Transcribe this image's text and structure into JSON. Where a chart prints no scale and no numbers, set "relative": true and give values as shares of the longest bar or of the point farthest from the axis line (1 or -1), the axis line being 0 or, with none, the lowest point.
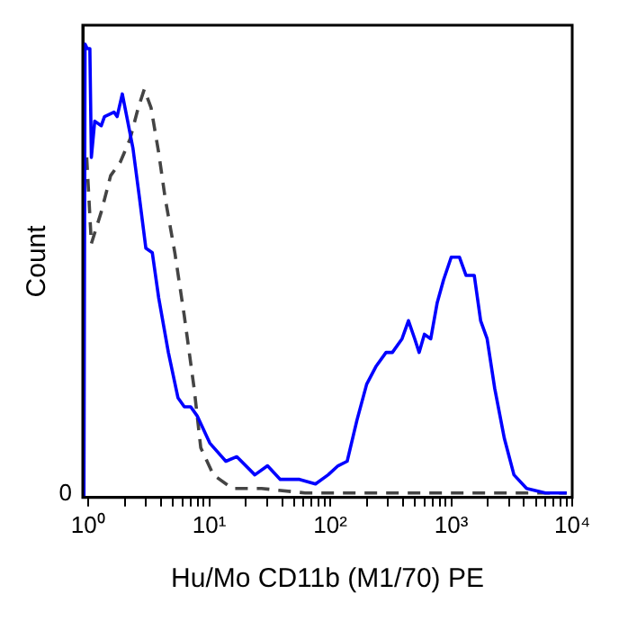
{
  "chart_data": {
    "type": "line",
    "xlabel": "Hu/Mo CD11b (M1/70) PE",
    "ylabel": "Count",
    "relative": true,
    "log": "x",
    "grid": false,
    "legend": false,
    "marker": "none",
    "annotations": [
      "0"
    ],
    "xlim": [
      0.9,
      10000
    ],
    "xticks": [
      {
        "value": 1,
        "label": "10⁰"
      },
      {
        "value": 2,
        "label": null
      },
      {
        "value": 3,
        "label": null
      },
      {
        "value": 4,
        "label": null
      },
      {
        "value": 5,
        "label": null
      },
      {
        "value": 6,
        "label": null
      },
      {
        "value": 7,
        "label": null
      },
      {
        "value": 8,
        "label": null
      },
      {
        "value": 9,
        "label": null
      },
      {
        "value": 10,
        "label": "10¹"
      },
      {
        "value": 20,
        "label": null
      },
      {
        "value": 30,
        "label": null
      },
      {
        "value": 40,
        "label": null
      },
      {
        "value": 50,
        "label": null
      },
      {
        "value": 60,
        "label": null
      },
      {
        "value": 70,
        "label": null
      },
      {
        "value": 80,
        "label": null
      },
      {
        "value": 90,
        "label": null
      },
      {
        "value": 100,
        "label": "10²"
      },
      {
        "value": 200,
        "label": null
      },
      {
        "value": 300,
        "label": null
      },
      {
        "value": 400,
        "label": null
      },
      {
        "value": 500,
        "label": null
      },
      {
        "value": 600,
        "label": null
      },
      {
        "value": 700,
        "label": null
      },
      {
        "value": 800,
        "label": null
      },
      {
        "value": 900,
        "label": null
      },
      {
        "value": 1000,
        "label": "10³"
      },
      {
        "value": 2000,
        "label": null
      },
      {
        "value": 3000,
        "label": null
      },
      {
        "value": 4000,
        "label": null
      },
      {
        "value": 5000,
        "label": null
      },
      {
        "value": 6000,
        "label": null
      },
      {
        "value": 7000,
        "label": null
      },
      {
        "value": 8000,
        "label": null
      },
      {
        "value": 9000,
        "label": null
      },
      {
        "value": 10000,
        "label": "10⁴"
      }
    ],
    "series": [
      {
        "color": "#0000ff",
        "line_style": "solid",
        "x": [
          0.92,
          0.94,
          0.98,
          1.03,
          1.06,
          1.13,
          1.28,
          1.36,
          1.63,
          1.73,
          1.91,
          2.08,
          2.34,
          2.65,
          2.99,
          3.38,
          3.82,
          4.59,
          5.51,
          6.22,
          7.02,
          7.94,
          10.1,
          13.7,
          16.9,
          23.8,
          30.3,
          38.6,
          55.7,
          75.5,
          96,
          116,
          138,
          166,
          200,
          240,
          289,
          326,
          392,
          443,
          499,
          543,
          600,
          677,
          766,
          864,
          1000,
          1170,
          1324,
          1550,
          1750,
          1980,
          2290,
          2750,
          3300,
          4200,
          6000,
          9000
        ],
        "values": [
          0,
          1.0,
          0.99,
          0.99,
          0.75,
          0.83,
          0.82,
          0.84,
          0.85,
          0.84,
          0.89,
          0.84,
          0.77,
          0.66,
          0.55,
          0.54,
          0.44,
          0.32,
          0.22,
          0.2,
          0.2,
          0.18,
          0.12,
          0.08,
          0.09,
          0.05,
          0.07,
          0.04,
          0.04,
          0.03,
          0.05,
          0.07,
          0.08,
          0.17,
          0.25,
          0.29,
          0.32,
          0.32,
          0.35,
          0.39,
          0.35,
          0.32,
          0.36,
          0.35,
          0.43,
          0.48,
          0.53,
          0.53,
          0.49,
          0.49,
          0.39,
          0.35,
          0.24,
          0.13,
          0.05,
          0.02,
          0.01,
          0.01
        ]
      },
      {
        "color": "#444444",
        "line_style": "dashed",
        "x": [
          0.97,
          1.06,
          1.28,
          1.53,
          1.84,
          2.21,
          2.59,
          2.9,
          3.3,
          3.82,
          4.32,
          5.19,
          6.22,
          7.5,
          8.5,
          10.8,
          15.5,
          27,
          62,
          9000
        ],
        "values": [
          0.75,
          0.56,
          0.63,
          0.71,
          0.74,
          0.79,
          0.86,
          0.9,
          0.86,
          0.76,
          0.66,
          0.54,
          0.4,
          0.24,
          0.11,
          0.05,
          0.02,
          0.02,
          0.01,
          0.01
        ]
      }
    ]
  }
}
